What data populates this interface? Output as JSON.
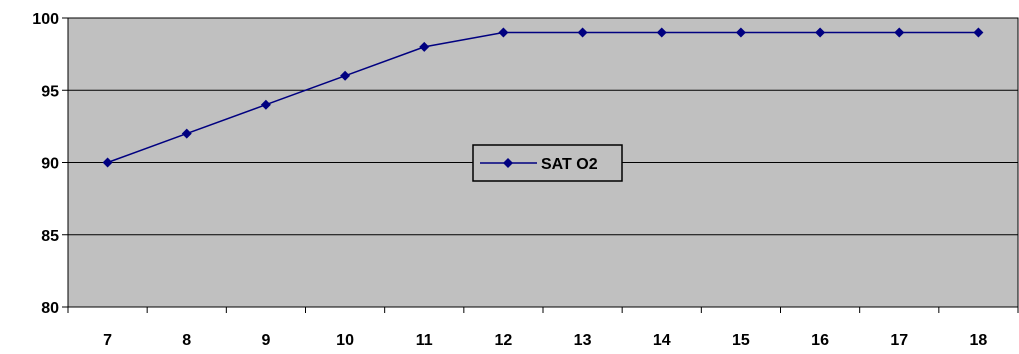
{
  "chart_data": {
    "type": "line",
    "title": "",
    "xlabel": "",
    "ylabel": "",
    "categories": [
      "7",
      "8",
      "9",
      "10",
      "11",
      "12",
      "13",
      "14",
      "15",
      "16",
      "17",
      "18"
    ],
    "series": [
      {
        "name": "SAT O2",
        "values": [
          90,
          92,
          94,
          96,
          98,
          99,
          99,
          99,
          99,
          99,
          99,
          99
        ]
      }
    ],
    "ylim": [
      80,
      100
    ],
    "yticks": [
      80,
      85,
      90,
      95,
      100
    ],
    "grid": "horizontal",
    "legend": "center",
    "colors": {
      "plot_background": "#c0c0c0",
      "series_line": "#000080",
      "gridline": "#000000",
      "axis": "#000000"
    },
    "marker": "diamond"
  }
}
